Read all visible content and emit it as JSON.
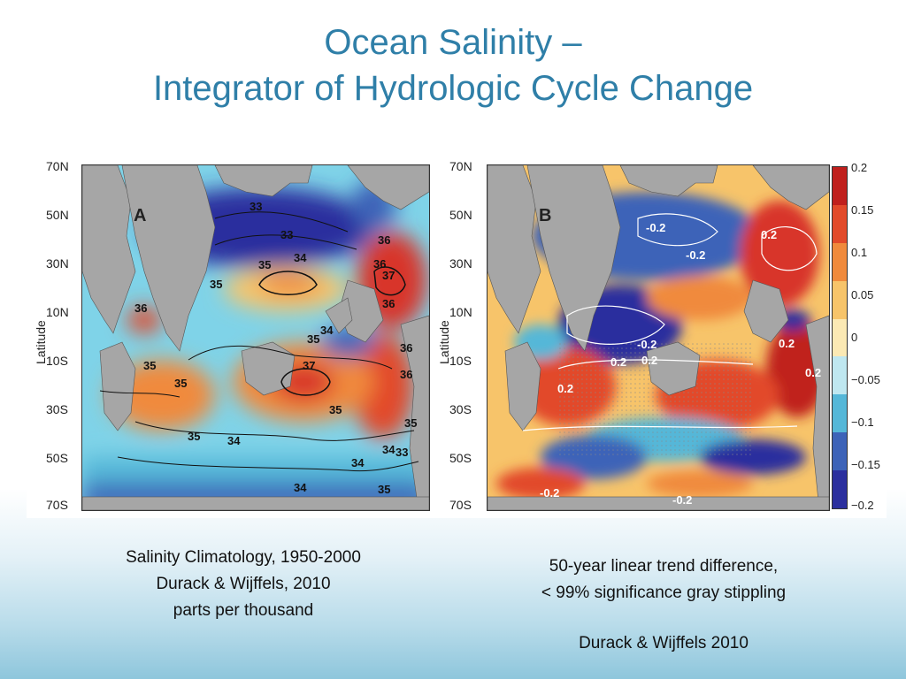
{
  "slide": {
    "title_line1": "Ocean Salinity –",
    "title_line2": "Integrator of Hydrologic Cycle Change"
  },
  "panel_a": {
    "letter": "A",
    "axis_title": "Latitude",
    "lat_ticks": [
      "70N",
      "50N",
      "30N",
      "10N",
      "10S",
      "30S",
      "50S",
      "70S"
    ],
    "contour_labels": [
      "33",
      "33",
      "35",
      "34",
      "35",
      "36",
      "36",
      "37",
      "36",
      "36",
      "34",
      "35",
      "35",
      "36",
      "37",
      "36",
      "35",
      "35",
      "35",
      "34",
      "34",
      "34",
      "34",
      "35",
      "33",
      "35"
    ],
    "colors": {
      "land": "#a6a6a6",
      "fresh": "#2b2f9e",
      "mid": "#7fd3e8",
      "salty": "#d8352a"
    }
  },
  "panel_b": {
    "letter": "B",
    "axis_title": "Latitude",
    "lat_ticks": [
      "70N",
      "50N",
      "30N",
      "10N",
      "10S",
      "30S",
      "50S",
      "70S"
    ],
    "contour_labels": [
      "-0.2",
      "-0.2",
      "0.2",
      "-0.2",
      "0.2",
      "0.2",
      "0.2",
      "0.2",
      "0.2",
      "-0.2",
      "-0.2"
    ],
    "colorbar_ticks": [
      "0.2",
      "0.15",
      "0.1",
      "0.05",
      "0",
      "−0.05",
      "−0.1",
      "−0.15",
      "−0.2"
    ],
    "colorbar_colors": [
      "#c0201d",
      "#e24a2a",
      "#f08a3c",
      "#f7c46a",
      "#fbe9b4",
      "#bfe7f0",
      "#55b7d8",
      "#3d63b8",
      "#2b2f9e"
    ]
  },
  "captions": {
    "left_line1": "Salinity Climatology, 1950-2000",
    "left_line2": "Durack & Wijffels, 2010",
    "left_line3": "parts per thousand",
    "right_line1": "50-year linear trend difference,",
    "right_line2": "< 99% significance gray stippling",
    "right_source": "Durack & Wijffels 2010"
  }
}
